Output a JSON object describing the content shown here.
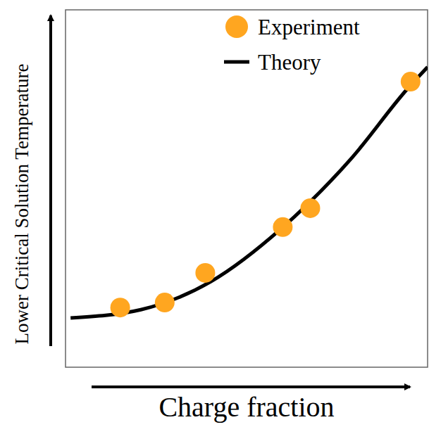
{
  "chart_data": {
    "type": "scatter",
    "x_label": "Charge fraction",
    "y_label": "Lower Critical Solution Temperature",
    "xlim": [
      0,
      1
    ],
    "ylim": [
      0,
      1
    ],
    "xticks": [],
    "yticks": [],
    "tick_labels": false,
    "grid": false,
    "legend": "upper right",
    "series": [
      {
        "name": "Experiment",
        "type": "scatter",
        "color": "#ffa620",
        "marker": "circle",
        "x": [
          0.151,
          0.274,
          0.386,
          0.6,
          0.676,
          0.953
        ],
        "values": [
          0.167,
          0.181,
          0.264,
          0.392,
          0.445,
          0.799
        ]
      },
      {
        "name": "Theory",
        "type": "line",
        "color": "#000000",
        "line_style": "solid",
        "x": [
          0.014,
          0.208,
          0.402,
          0.596,
          0.79,
          0.946,
          1.0
        ],
        "values": [
          0.138,
          0.161,
          0.24,
          0.388,
          0.585,
          0.781,
          0.84
        ]
      }
    ]
  }
}
